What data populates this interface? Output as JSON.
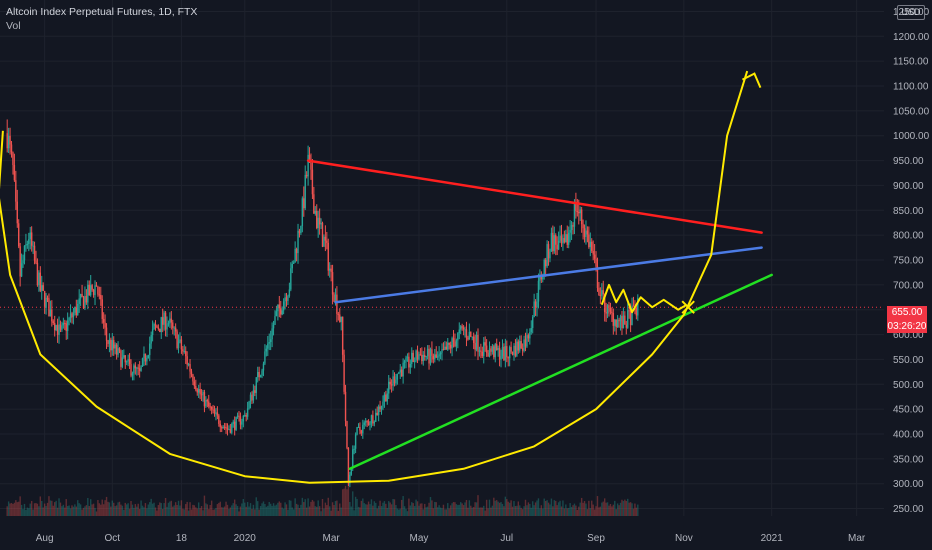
{
  "header": {
    "title": "Altcoin Index Perpetual Futures, 1D, FTX",
    "indicator": "Vol",
    "currency": "USD"
  },
  "price_badge": "655.00",
  "countdown_badge": "03:26:20",
  "colors": {
    "background": "#131722",
    "up": "#26a69a",
    "down": "#ef5350",
    "red_line": "#ff1f1f",
    "blue_line": "#4b7be5",
    "green_line": "#22e022",
    "yellow_draw": "#ffea00"
  },
  "chart_data": {
    "type": "candlestick",
    "title": "Altcoin Index Perpetual Futures, 1D, FTX",
    "xlabel": "",
    "ylabel": "",
    "x_ticks": [
      "Aug",
      "Oct",
      "18",
      "2020",
      "Mar",
      "May",
      "Jul",
      "Sep",
      "Nov",
      "2021",
      "Mar"
    ],
    "y_ticks": [
      250,
      300,
      350,
      400,
      450,
      500,
      550,
      600,
      650,
      700,
      750,
      800,
      850,
      900,
      950,
      1000,
      1050,
      1100,
      1150,
      1200,
      1250
    ],
    "ylim": [
      235,
      1265
    ],
    "x_range": [
      "2019-07-15",
      "2021-03-20"
    ],
    "last_price": 655.0,
    "grid": true,
    "anchors": [
      [
        "2019-07-20",
        1005
      ],
      [
        "2019-07-24",
        930
      ],
      [
        "2019-07-29",
        720
      ],
      [
        "2019-08-04",
        800
      ],
      [
        "2019-08-12",
        690
      ],
      [
        "2019-08-26",
        600
      ],
      [
        "2019-09-08",
        660
      ],
      [
        "2019-09-20",
        700
      ],
      [
        "2019-09-27",
        590
      ],
      [
        "2019-10-10",
        540
      ],
      [
        "2019-10-20",
        520
      ],
      [
        "2019-10-30",
        610
      ],
      [
        "2019-11-08",
        630
      ],
      [
        "2019-11-20",
        560
      ],
      [
        "2019-12-01",
        480
      ],
      [
        "2019-12-10",
        440
      ],
      [
        "2019-12-20",
        410
      ],
      [
        "2020-01-01",
        435
      ],
      [
        "2020-01-12",
        530
      ],
      [
        "2020-01-22",
        630
      ],
      [
        "2020-02-01",
        700
      ],
      [
        "2020-02-10",
        850
      ],
      [
        "2020-02-14",
        945
      ],
      [
        "2020-02-20",
        830
      ],
      [
        "2020-02-26",
        780
      ],
      [
        "2020-03-02",
        700
      ],
      [
        "2020-03-08",
        620
      ],
      [
        "2020-03-13",
        300
      ],
      [
        "2020-03-18",
        400
      ],
      [
        "2020-04-01",
        440
      ],
      [
        "2020-04-15",
        520
      ],
      [
        "2020-05-01",
        560
      ],
      [
        "2020-05-15",
        550
      ],
      [
        "2020-06-01",
        610
      ],
      [
        "2020-06-15",
        570
      ],
      [
        "2020-07-01",
        560
      ],
      [
        "2020-07-15",
        590
      ],
      [
        "2020-07-25",
        720
      ],
      [
        "2020-08-01",
        790
      ],
      [
        "2020-08-10",
        770
      ],
      [
        "2020-08-18",
        860
      ],
      [
        "2020-08-28",
        780
      ],
      [
        "2020-09-04",
        680
      ],
      [
        "2020-09-10",
        640
      ],
      [
        "2020-09-20",
        620
      ],
      [
        "2020-09-30",
        655
      ]
    ],
    "drawings": {
      "red_resistance": {
        "from": [
          "2020-02-14",
          950
        ],
        "to": [
          "2020-12-25",
          805
        ]
      },
      "blue_line": {
        "from": [
          "2020-03-04",
          665
        ],
        "to": [
          "2020-12-25",
          775
        ]
      },
      "green_support": {
        "from": [
          "2020-03-14",
          330
        ],
        "to": [
          "2021-01-01",
          720
        ]
      },
      "yellow_arrow_tip": [
        "2020-12-20",
        1125
      ]
    }
  }
}
